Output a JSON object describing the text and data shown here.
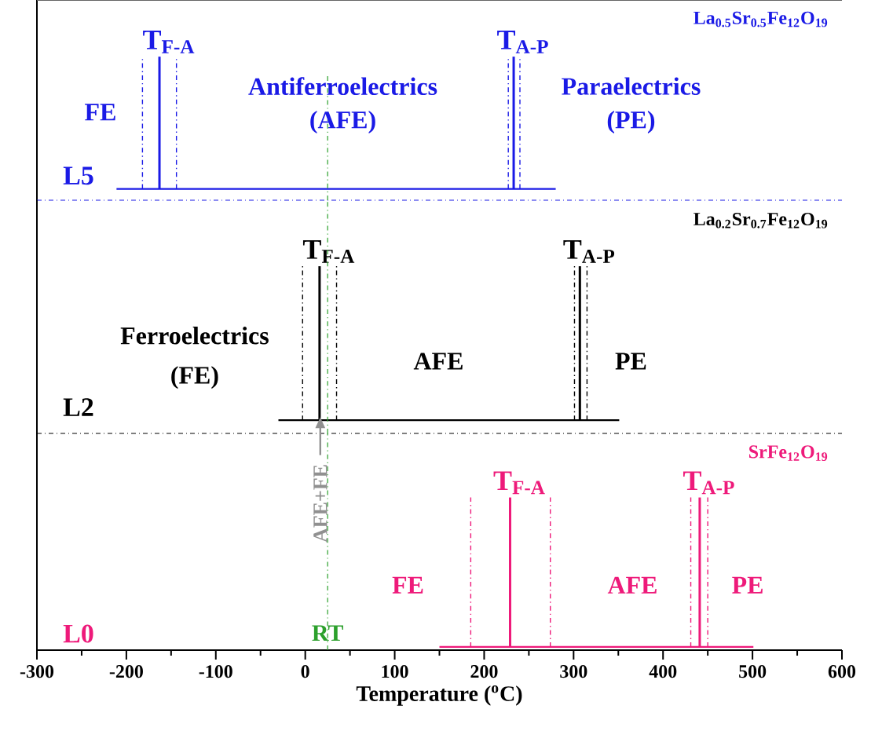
{
  "chart_data": [
    {
      "type": "bar",
      "orientation": "horizontal",
      "title": "La$_{0.5}$Sr$_{0.5}$Fe$_{12}$O$_{19}$",
      "xlim": [
        -300,
        600
      ],
      "tick_labels": "y",
      "categories": [
        "L5"
      ],
      "base": [
        -211
      ],
      "values": [
        491
      ],
      "colors": [
        "#1a1ae6"
      ],
      "ref_lines": [
        {
          "axis": "x",
          "value": -182,
          "line_style": "dashdot"
        },
        {
          "axis": "x",
          "value": -163,
          "line_style": "solid",
          "label": "T$_{F-A}$"
        },
        {
          "axis": "x",
          "value": -144,
          "line_style": "dashdot"
        },
        {
          "axis": "x",
          "value": 227,
          "line_style": "dashdot"
        },
        {
          "axis": "x",
          "value": 233,
          "line_style": "solid",
          "label": "T$_{A-P}$"
        },
        {
          "axis": "x",
          "value": 240,
          "line_style": "dashdot"
        },
        {
          "axis": "x",
          "value": 25,
          "line_style": "dashdot",
          "color": "#2ca02c"
        }
      ],
      "annotations": [
        "FE",
        "Antiferroelectrics",
        "(AFE)",
        "Paraelectrics",
        "(PE)"
      ]
    },
    {
      "type": "bar",
      "orientation": "horizontal",
      "title": "La$_{0.2}$Sr$_{0.7}$Fe$_{12}$O$_{19}$",
      "xlim": [
        -300,
        600
      ],
      "tick_labels": "y",
      "categories": [
        "L2"
      ],
      "base": [
        -30
      ],
      "values": [
        381
      ],
      "colors": [
        "#000000"
      ],
      "ref_lines": [
        {
          "axis": "x",
          "value": -3,
          "line_style": "dashdot"
        },
        {
          "axis": "x",
          "value": 16,
          "line_style": "solid",
          "label": "T$_{F-A}$"
        },
        {
          "axis": "x",
          "value": 35,
          "line_style": "dashdot"
        },
        {
          "axis": "x",
          "value": 301,
          "line_style": "dashdot"
        },
        {
          "axis": "x",
          "value": 307,
          "line_style": "solid",
          "label": "T$_{A-P}$"
        },
        {
          "axis": "x",
          "value": 315,
          "line_style": "dashdot"
        },
        {
          "axis": "x",
          "value": 25,
          "line_style": "dashdot",
          "color": "#2ca02c"
        }
      ],
      "annotations": [
        "Ferroelectrics",
        "(FE)",
        "AFE",
        "PE"
      ]
    },
    {
      "type": "bar",
      "orientation": "horizontal",
      "title": "SrFe$_{12}$O$_{19}$",
      "xlim": [
        -300,
        600
      ],
      "xlabel": "Temperature ($^{o}$C)",
      "xticks": [
        -300,
        -200,
        -100,
        0,
        100,
        200,
        300,
        400,
        500,
        600
      ],
      "categories": [
        "L0"
      ],
      "base": [
        150
      ],
      "values": [
        351
      ],
      "colors": [
        "#ee1a7a"
      ],
      "ref_lines": [
        {
          "axis": "x",
          "value": 185,
          "line_style": "dashdot"
        },
        {
          "axis": "x",
          "value": 229,
          "line_style": "solid",
          "label": "T$_{F-A}$"
        },
        {
          "axis": "x",
          "value": 274,
          "line_style": "dashdot"
        },
        {
          "axis": "x",
          "value": 431,
          "line_style": "dashdot"
        },
        {
          "axis": "x",
          "value": 441,
          "line_style": "solid",
          "label": "T$_{A-P}$"
        },
        {
          "axis": "x",
          "value": 450,
          "line_style": "dashdot"
        },
        {
          "axis": "x",
          "value": 25,
          "line_style": "dashdot",
          "color": "#2ca02c",
          "label": "RT"
        }
      ],
      "annotations": [
        "FE",
        "AFE",
        "PE",
        "AFE+FE"
      ]
    }
  ]
}
